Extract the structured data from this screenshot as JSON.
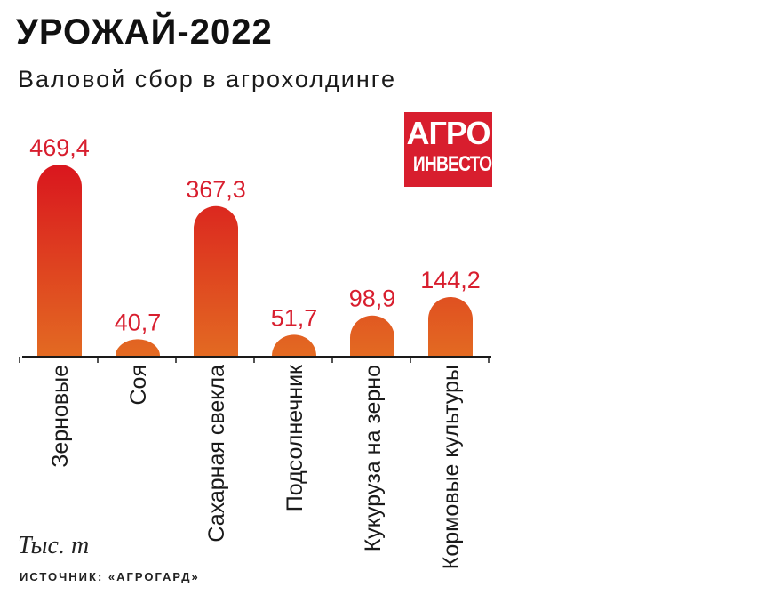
{
  "header": {
    "title": "УРОЖАЙ-2022",
    "subtitle": "Валовой сбор в агрохолдинге"
  },
  "logo": {
    "line1": "АГРО",
    "line2": "ИНВЕСТОР",
    "color": "#d81e2e"
  },
  "footer": {
    "units": "Тыс. т",
    "source": "ИСТОЧНИК: «АГРОГАРД»"
  },
  "chart_data": {
    "type": "bar",
    "categories": [
      "Зерновые",
      "Соя",
      "Сахарная свекла",
      "Подсолнечник",
      "Кукуруза на зерно",
      "Кормовые культуры"
    ],
    "values": [
      469.4,
      40.7,
      367.3,
      51.7,
      98.9,
      144.2
    ],
    "value_labels": [
      "469,4",
      "40,7",
      "367,3",
      "51,7",
      "98,9",
      "144,2"
    ],
    "unit": "Тыс. т",
    "colors": {
      "top": "#d9141e",
      "bottom": "#e36a22",
      "label": "#d81e2e",
      "axis": "#1a1a1a"
    }
  }
}
